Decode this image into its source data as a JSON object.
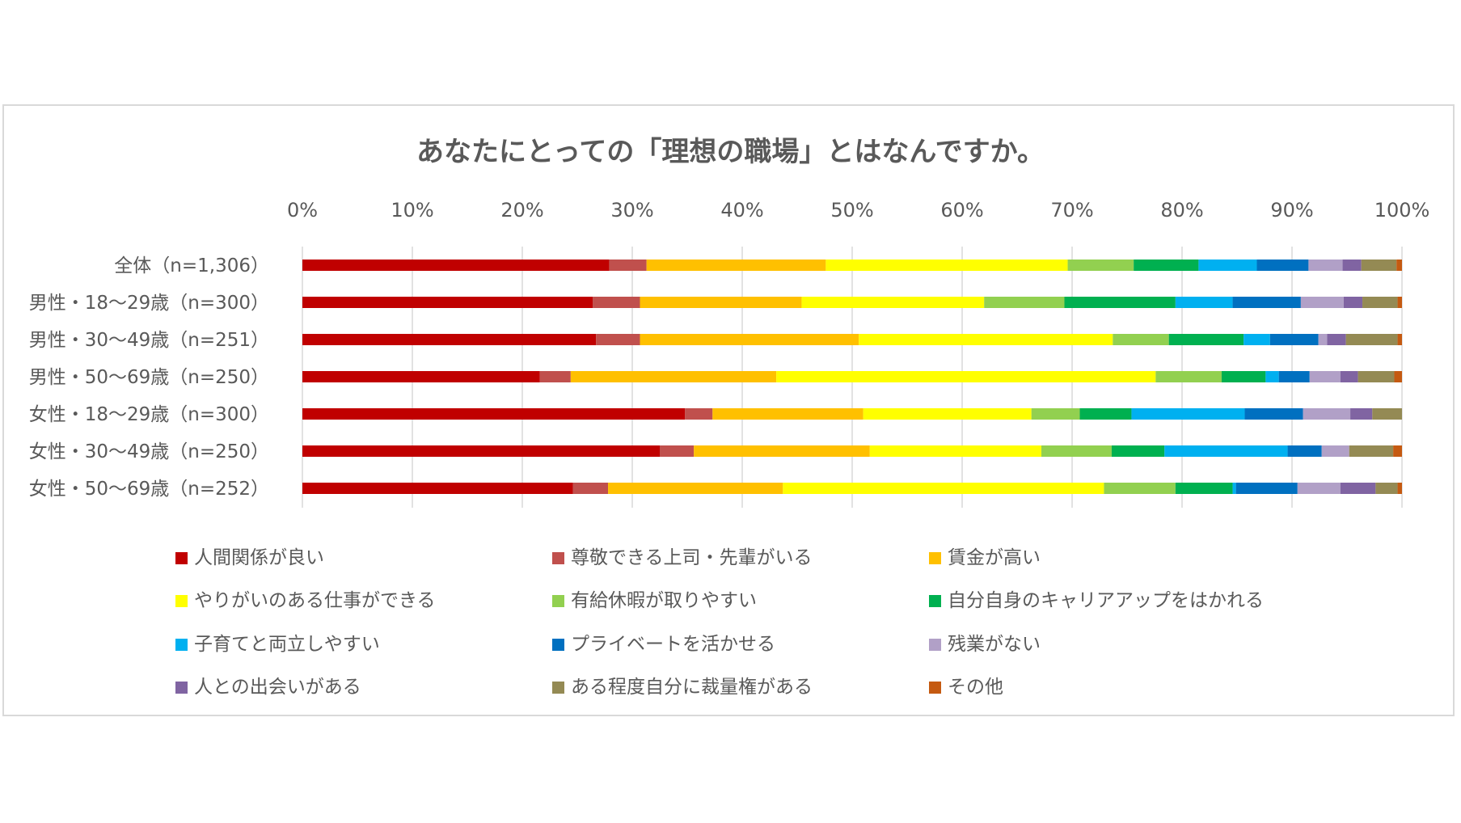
{
  "chart_data": {
    "type": "bar",
    "orientation": "horizontal",
    "stacked": "percent",
    "title": "あなたにとっての「理想の職場」とはなんですか。",
    "xlim": [
      0,
      100
    ],
    "x_ticks": [
      "0%",
      "10%",
      "20%",
      "30%",
      "40%",
      "50%",
      "60%",
      "70%",
      "80%",
      "90%",
      "100%"
    ],
    "grid": true,
    "legend_position": "bottom",
    "categories": [
      "全体（n=1,306）",
      "男性・18～29歳（n=300）",
      "男性・30～49歳（n=251）",
      "男性・50～69歳（n=250）",
      "女性・18～29歳（n=300）",
      "女性・30～49歳（n=250）",
      "女性・50～69歳（n=252）"
    ],
    "series": [
      {
        "name": "人間関係が良い",
        "color": "#C00000",
        "values": [
          27.9,
          26.4,
          26.7,
          21.6,
          34.8,
          32.5,
          24.6
        ]
      },
      {
        "name": "尊敬できる上司・先輩がいる",
        "color": "#C0504D",
        "values": [
          3.4,
          4.3,
          4.0,
          2.8,
          2.5,
          3.1,
          3.2
        ]
      },
      {
        "name": "賃金が高い",
        "color": "#FFC000",
        "values": [
          16.3,
          14.7,
          19.9,
          18.7,
          13.7,
          16.0,
          15.9
        ]
      },
      {
        "name": "やりがいのある仕事ができる",
        "color": "#FFFF00",
        "values": [
          22.0,
          16.6,
          23.1,
          34.5,
          15.3,
          15.6,
          29.2
        ]
      },
      {
        "name": "有給休暇が取りやすい",
        "color": "#92D050",
        "values": [
          6.0,
          7.3,
          5.1,
          6.0,
          4.4,
          6.4,
          6.5
        ]
      },
      {
        "name": "自分自身のキャリアアップをはかれる",
        "color": "#00B050",
        "values": [
          5.9,
          10.1,
          6.8,
          4.0,
          4.7,
          4.8,
          5.2
        ]
      },
      {
        "name": "子育てと両立しやすい",
        "color": "#00B0F0",
        "values": [
          5.3,
          5.2,
          2.4,
          1.2,
          10.3,
          11.2,
          0.3
        ]
      },
      {
        "name": "プライベートを活かせる",
        "color": "#0070C0",
        "values": [
          4.7,
          6.2,
          4.4,
          2.8,
          5.3,
          3.1,
          5.6
        ]
      },
      {
        "name": "残業がない",
        "color": "#B1A0C7",
        "values": [
          3.1,
          3.9,
          0.8,
          2.8,
          4.3,
          2.5,
          3.9
        ]
      },
      {
        "name": "人との出会いがある",
        "color": "#8064A2",
        "values": [
          1.7,
          1.7,
          1.7,
          1.6,
          2.0,
          0.0,
          3.2
        ]
      },
      {
        "name": "ある程度自分に裁量権がある",
        "color": "#948A54",
        "values": [
          3.2,
          3.2,
          4.7,
          3.3,
          2.7,
          4.0,
          2.0
        ]
      },
      {
        "name": "その他",
        "color": "#C55A11",
        "values": [
          0.5,
          0.4,
          0.4,
          0.7,
          0.0,
          0.8,
          0.4
        ]
      }
    ]
  }
}
